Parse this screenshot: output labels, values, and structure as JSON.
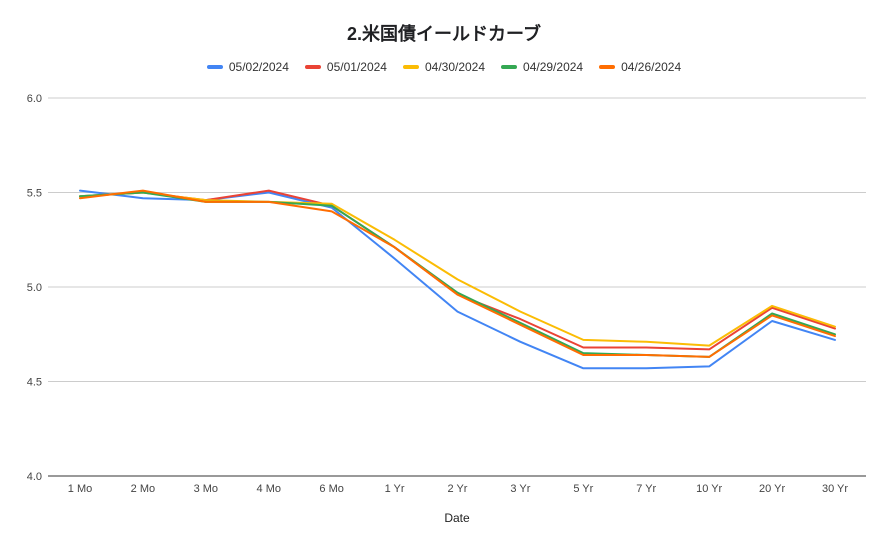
{
  "chart_data": {
    "type": "line",
    "title": "2.米国債イールドカーブ",
    "xlabel": "Date",
    "ylabel": "",
    "ylim": [
      4.0,
      6.0
    ],
    "yticks": [
      "4.0",
      "4.5",
      "5.0",
      "5.5",
      "6.0"
    ],
    "grid": true,
    "legend_position": "top",
    "categories": [
      "1 Mo",
      "2 Mo",
      "3 Mo",
      "4 Mo",
      "6 Mo",
      "1 Yr",
      "2 Yr",
      "3 Yr",
      "5 Yr",
      "7 Yr",
      "10 Yr",
      "20 Yr",
      "30 Yr"
    ],
    "series": [
      {
        "name": "05/02/2024",
        "color": "#4285F4",
        "values": [
          5.51,
          5.47,
          5.46,
          5.5,
          5.42,
          5.15,
          4.87,
          4.71,
          4.57,
          4.57,
          4.58,
          4.82,
          4.72
        ]
      },
      {
        "name": "05/01/2024",
        "color": "#EA4335",
        "values": [
          5.48,
          5.5,
          5.46,
          5.51,
          5.43,
          5.21,
          4.96,
          4.83,
          4.68,
          4.68,
          4.67,
          4.89,
          4.78
        ]
      },
      {
        "name": "04/30/2024",
        "color": "#FBBC04",
        "values": [
          5.48,
          5.5,
          5.46,
          5.45,
          5.44,
          5.25,
          5.04,
          4.87,
          4.72,
          4.71,
          4.69,
          4.9,
          4.79
        ]
      },
      {
        "name": "04/29/2024",
        "color": "#34A853",
        "values": [
          5.48,
          5.5,
          5.45,
          5.45,
          5.43,
          5.21,
          4.97,
          4.81,
          4.65,
          4.64,
          4.63,
          4.86,
          4.75
        ]
      },
      {
        "name": "04/26/2024",
        "color": "#FF6D01",
        "values": [
          5.47,
          5.51,
          5.45,
          5.45,
          5.4,
          5.21,
          4.96,
          4.8,
          4.64,
          4.64,
          4.63,
          4.85,
          4.74
        ]
      }
    ]
  }
}
